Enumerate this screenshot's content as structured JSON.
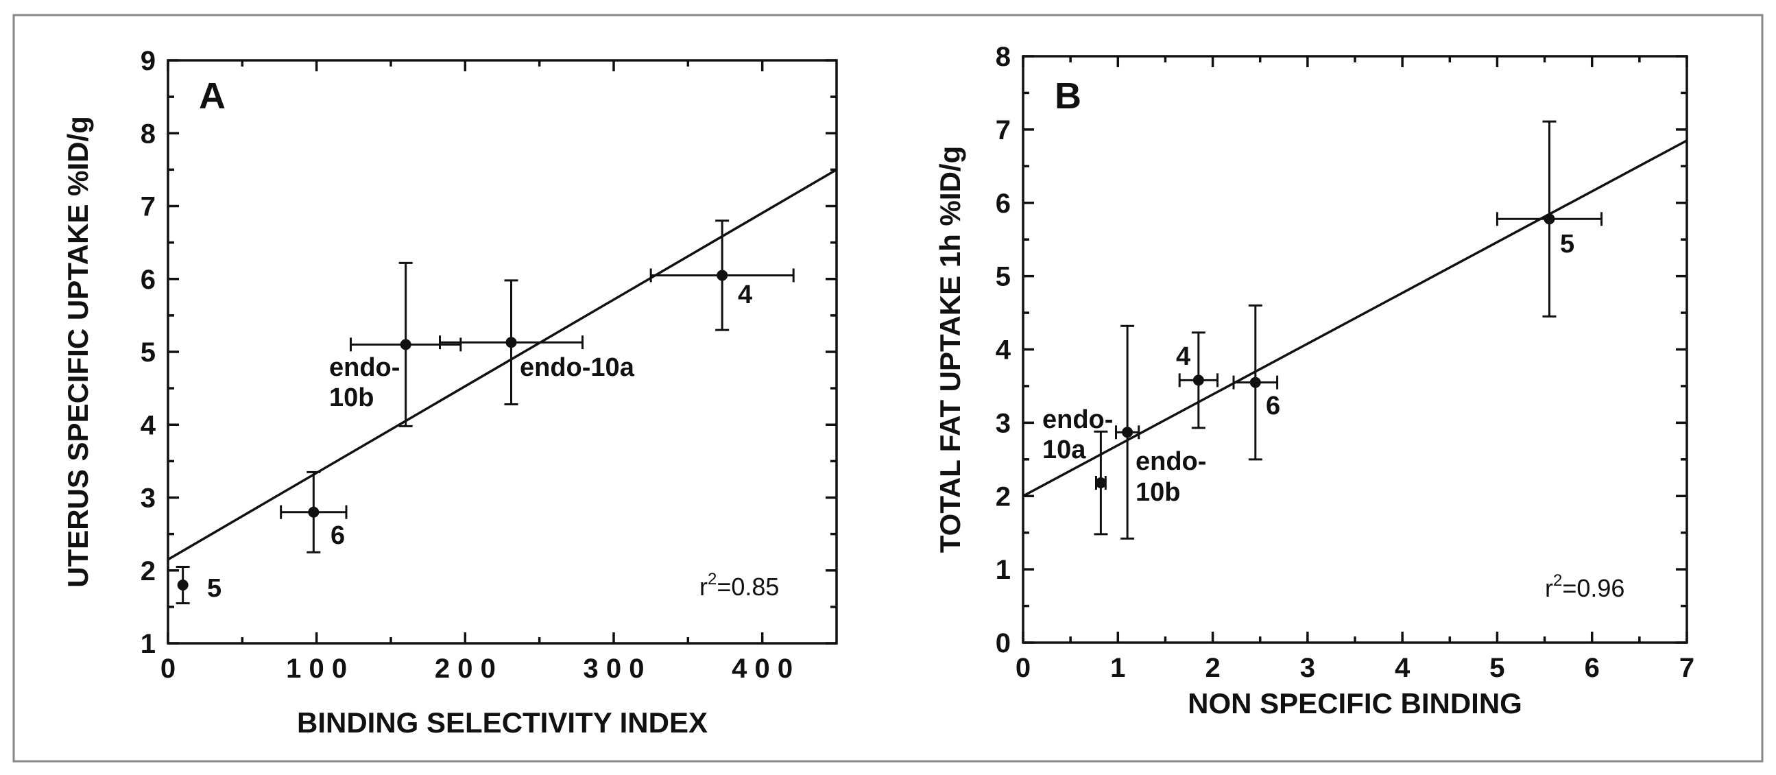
{
  "chart_data": [
    {
      "type": "scatter",
      "panel": "A",
      "xlabel": "BINDING SELECTIVITY INDEX",
      "ylabel": "UTERUS SPECIFIC UPTAKE  %ID/g",
      "xlim": [
        0,
        450
      ],
      "ylim": [
        1,
        9
      ],
      "xticks": [
        0,
        100,
        200,
        300,
        400
      ],
      "xtick_labels": [
        "0",
        "1 0 0",
        "2 0 0",
        "3 0 0",
        "4 0 0"
      ],
      "yticks": [
        1,
        2,
        3,
        4,
        5,
        6,
        7,
        8,
        9
      ],
      "ytick_labels": [
        "1",
        "2",
        "3",
        "4",
        "5",
        "6",
        "7",
        "8",
        "9"
      ],
      "r2_prefix": "r",
      "r2_exp": "2",
      "r2_value": "=0.85",
      "fit": {
        "x": [
          0,
          450
        ],
        "y": [
          2.15,
          7.5
        ]
      },
      "points": [
        {
          "label": [
            "5"
          ],
          "x": 10,
          "y": 1.8,
          "xerr": 0,
          "yerr": 0.25
        },
        {
          "label": [
            "6"
          ],
          "x": 98,
          "y": 2.8,
          "xerr": 22,
          "yerr": 0.55
        },
        {
          "label": [
            "endo-",
            "10b"
          ],
          "x": 160,
          "y": 5.1,
          "xerr": 37,
          "yerr": 1.12
        },
        {
          "label": [
            "endo-10a"
          ],
          "x": 231,
          "y": 5.13,
          "xerr": 48,
          "yerr": 0.85
        },
        {
          "label": [
            "4"
          ],
          "x": 373,
          "y": 6.05,
          "xerr": 48,
          "yerr": 0.75
        }
      ]
    },
    {
      "type": "scatter",
      "panel": "B",
      "xlabel": "NON SPECIFIC BINDING",
      "ylabel": "TOTAL FAT UPTAKE  1h  %ID/g",
      "xlim": [
        0,
        7
      ],
      "ylim": [
        0,
        8
      ],
      "xticks": [
        0,
        1,
        2,
        3,
        4,
        5,
        6,
        7
      ],
      "xtick_labels": [
        "0",
        "1",
        "2",
        "3",
        "4",
        "5",
        "6",
        "7"
      ],
      "yticks": [
        0,
        1,
        2,
        3,
        4,
        5,
        6,
        7,
        8
      ],
      "ytick_labels": [
        "0",
        "1",
        "2",
        "3",
        "4",
        "5",
        "6",
        "7",
        "8"
      ],
      "r2_prefix": "r",
      "r2_exp": "2",
      "r2_value": "=0.96",
      "fit": {
        "x": [
          0,
          7
        ],
        "y": [
          2.0,
          6.85
        ]
      },
      "points": [
        {
          "label": [
            "endo-",
            "10a"
          ],
          "x": 0.82,
          "y": 2.18,
          "xerr": 0.05,
          "yerr": 0.7
        },
        {
          "label": [
            "endo-",
            "10b"
          ],
          "x": 1.1,
          "y": 2.87,
          "xerr": 0.12,
          "yerr": 1.45
        },
        {
          "label": [
            "4"
          ],
          "x": 1.85,
          "y": 3.58,
          "xerr": 0.2,
          "yerr": 0.65
        },
        {
          "label": [
            "6"
          ],
          "x": 2.45,
          "y": 3.55,
          "xerr": 0.23,
          "yerr": 1.05
        },
        {
          "label": [
            "5"
          ],
          "x": 5.55,
          "y": 5.78,
          "xerr": 0.55,
          "yerr": 1.33
        }
      ]
    }
  ]
}
